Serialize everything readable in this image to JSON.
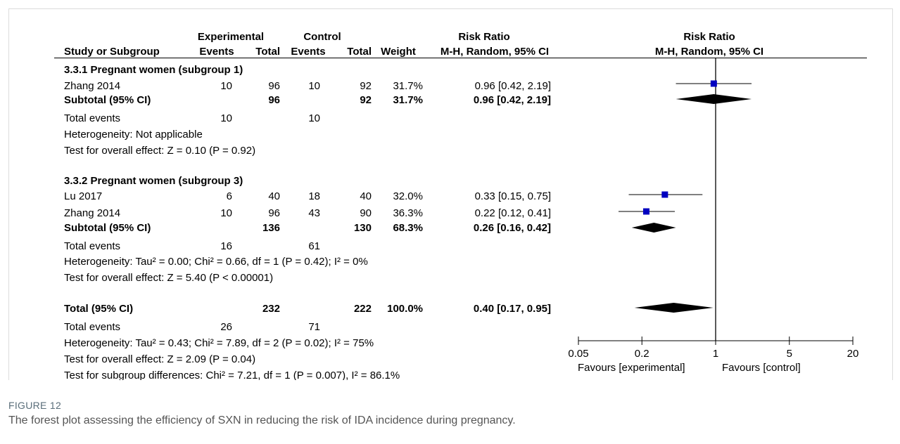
{
  "header": {
    "group_experimental": "Experimental",
    "group_control": "Control",
    "risk_ratio_table": "Risk Ratio",
    "risk_ratio_plot": "Risk Ratio",
    "col_study": "Study or Subgroup",
    "col_events_e": "Events",
    "col_total_e": "Total",
    "col_events_c": "Events",
    "col_total_c": "Total",
    "col_weight": "Weight",
    "col_rr": "M-H, Random, 95% CI",
    "col_rr_plot": "M-H, Random, 95% CI"
  },
  "rows": [
    {
      "kind": "subgroup",
      "label": "3.3.1 Pregnant women (subgroup 1)"
    },
    {
      "kind": "study",
      "label": "Zhang 2014",
      "e_events": "10",
      "e_total": "96",
      "c_events": "10",
      "c_total": "92",
      "weight": "31.7%",
      "rr": "0.96 [0.42, 2.19]"
    },
    {
      "kind": "subtotal",
      "label": "Subtotal (95% CI)",
      "e_total": "96",
      "c_total": "92",
      "weight": "31.7%",
      "rr": "0.96 [0.42, 2.19]"
    },
    {
      "kind": "events",
      "label": "Total events",
      "e_events": "10",
      "c_events": "10"
    },
    {
      "kind": "text",
      "label": "Heterogeneity: Not applicable"
    },
    {
      "kind": "text",
      "label": "Test for overall effect: Z = 0.10 (P = 0.92)"
    },
    {
      "kind": "subgroup",
      "label": "3.3.2 Pregnant women (subgroup 3)"
    },
    {
      "kind": "study",
      "label": "Lu 2017",
      "e_events": "6",
      "e_total": "40",
      "c_events": "18",
      "c_total": "40",
      "weight": "32.0%",
      "rr": "0.33 [0.15, 0.75]"
    },
    {
      "kind": "study",
      "label": "Zhang 2014",
      "e_events": "10",
      "e_total": "96",
      "c_events": "43",
      "c_total": "90",
      "weight": "36.3%",
      "rr": "0.22 [0.12, 0.41]"
    },
    {
      "kind": "subtotal",
      "label": "Subtotal (95% CI)",
      "e_total": "136",
      "c_total": "130",
      "weight": "68.3%",
      "rr": "0.26 [0.16, 0.42]"
    },
    {
      "kind": "events",
      "label": "Total events",
      "e_events": "16",
      "c_events": "61"
    },
    {
      "kind": "text",
      "label": "Heterogeneity: Tau² = 0.00; Chi² = 0.66, df = 1 (P = 0.42); I² = 0%"
    },
    {
      "kind": "text",
      "label": "Test for overall effect: Z = 5.40 (P < 0.00001)"
    },
    {
      "kind": "total",
      "label": "Total (95% CI)",
      "e_total": "232",
      "c_total": "222",
      "weight": "100.0%",
      "rr": "0.40 [0.17, 0.95]"
    },
    {
      "kind": "events",
      "label": "Total events",
      "e_events": "26",
      "c_events": "71"
    },
    {
      "kind": "text",
      "label": "Heterogeneity: Tau² = 0.43; Chi² = 7.89, df = 2 (P = 0.02); I² = 75%"
    },
    {
      "kind": "text",
      "label": "Test for overall effect: Z = 2.09 (P = 0.04)"
    },
    {
      "kind": "text",
      "label": "Test for subgroup differences: Chi² = 7.21, df = 1 (P = 0.007), I² = 86.1%"
    }
  ],
  "chart_data": {
    "type": "scatter",
    "xscale": "log",
    "xlim": [
      0.05,
      20
    ],
    "ticks": [
      0.05,
      0.2,
      1,
      5,
      20
    ],
    "tick_labels": [
      "0.05",
      "0.2",
      "1",
      "5",
      "20"
    ],
    "null_line": 1,
    "favours_left": "Favours [experimental]",
    "favours_right": "Favours [control]",
    "studies": [
      {
        "label": "Zhang 2014",
        "rr": 0.96,
        "lo": 0.42,
        "hi": 2.19
      },
      {
        "label": "Lu 2017",
        "rr": 0.33,
        "lo": 0.15,
        "hi": 0.75
      },
      {
        "label": "Zhang 2014",
        "rr": 0.22,
        "lo": 0.12,
        "hi": 0.41
      }
    ],
    "diamonds": [
      {
        "label": "Subtotal (95% CI)",
        "rr": 0.96,
        "lo": 0.42,
        "hi": 2.19
      },
      {
        "label": "Subtotal (95% CI)",
        "rr": 0.26,
        "lo": 0.16,
        "hi": 0.42
      },
      {
        "label": "Total (95% CI)",
        "rr": 0.4,
        "lo": 0.17,
        "hi": 0.95
      }
    ],
    "colors": {
      "square": "#0000c0",
      "diamond": "#000000"
    }
  },
  "figure": {
    "label": "FIGURE 12",
    "caption": "The forest plot assessing the efficiency of SXN in reducing the risk of IDA incidence during pregnancy."
  }
}
